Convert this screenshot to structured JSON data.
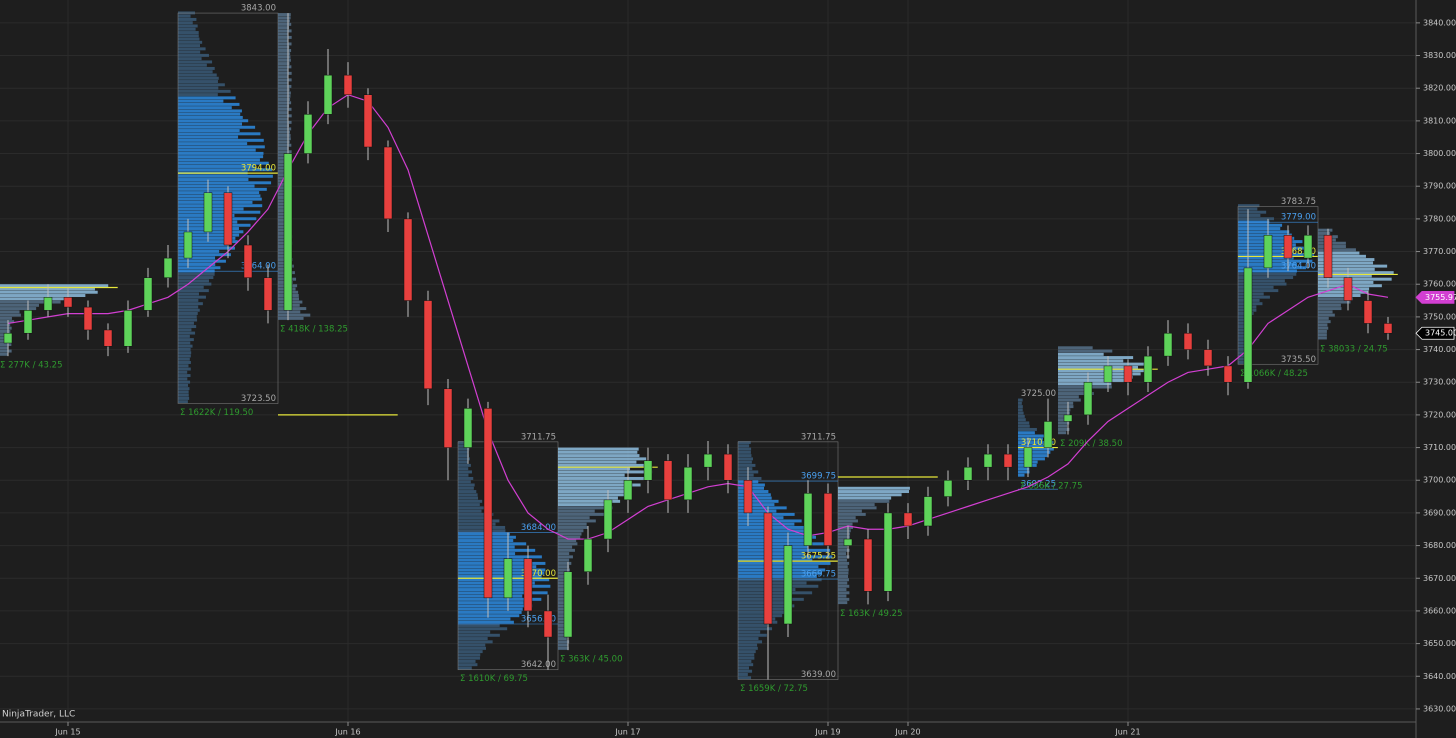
{
  "chart_data": {
    "type": "candlestick",
    "watermark": "NinjaTrader, LLC",
    "categories": [
      null,
      null,
      null,
      "Jun 15",
      null,
      null,
      null,
      null,
      null,
      null,
      null,
      null,
      null,
      null,
      null,
      null,
      null,
      "Jun 16",
      null,
      null,
      null,
      null,
      null,
      null,
      null,
      null,
      null,
      null,
      null,
      null,
      null,
      "Jun 17",
      null,
      null,
      null,
      null,
      null,
      null,
      null,
      null,
      null,
      "Jun 19",
      null,
      null,
      null,
      "Jun 20",
      null,
      null,
      null,
      null,
      null,
      null,
      null,
      null,
      null,
      null,
      "Jun 21",
      null,
      null,
      null,
      null,
      null,
      null,
      null,
      null,
      null,
      null,
      null,
      null,
      null
    ],
    "open": [
      3742,
      3745,
      3752,
      3756,
      3753,
      3746,
      3741,
      3752,
      3762,
      3768,
      3776,
      3788,
      3772,
      3762,
      3752,
      3800,
      3812,
      3824,
      3818,
      3802,
      3780,
      3755,
      3728,
      3710,
      3722,
      3664,
      3676,
      3660,
      3652,
      3672,
      3682,
      3694,
      3700,
      3706,
      3694,
      3704,
      3708,
      3700,
      3690,
      3656,
      3680,
      3696,
      3680,
      3682,
      3666,
      3690,
      3686,
      3695,
      3700,
      3704,
      3708,
      3704,
      3710,
      3718,
      3720,
      3730,
      3735,
      3730,
      3738,
      3745,
      3740,
      3735,
      3730,
      3765,
      3775,
      3768,
      3775,
      3762,
      3755,
      3748
    ],
    "high": [
      3749,
      3755,
      3760,
      3759,
      3755,
      3748,
      3755,
      3765,
      3772,
      3780,
      3792,
      3790,
      3775,
      3766,
      3843,
      3816,
      3832,
      3828,
      3820,
      3804,
      3782,
      3758,
      3731,
      3725,
      3724,
      3684,
      3680,
      3665,
      3675,
      3686,
      3697,
      3704,
      3710,
      3708,
      3708,
      3712,
      3711,
      3704,
      3692,
      3684,
      3700,
      3699,
      3686,
      3685,
      3693,
      3693,
      3698,
      3703,
      3707,
      3711,
      3711,
      3713,
      3725,
      3724,
      3733,
      3738,
      3737,
      3741,
      3749,
      3748,
      3743,
      3738,
      3783,
      3780,
      3778,
      3778,
      3777,
      3765,
      3758,
      3750
    ],
    "low": [
      3738,
      3743,
      3750,
      3750,
      3743,
      3738,
      3739,
      3750,
      3759,
      3765,
      3773,
      3768,
      3758,
      3748,
      3749,
      3797,
      3809,
      3814,
      3798,
      3776,
      3750,
      3723,
      3700,
      3705,
      3658,
      3660,
      3655,
      3642,
      3648,
      3668,
      3678,
      3690,
      3696,
      3690,
      3690,
      3700,
      3696,
      3686,
      3639,
      3652,
      3676,
      3676,
      3676,
      3662,
      3663,
      3682,
      3683,
      3692,
      3697,
      3700,
      3700,
      3701,
      3707,
      3714,
      3717,
      3727,
      3726,
      3727,
      3735,
      3737,
      3732,
      3726,
      3728,
      3762,
      3764,
      3765,
      3759,
      3752,
      3745,
      3743
    ],
    "close": [
      3745,
      3752,
      3756,
      3753,
      3746,
      3741,
      3752,
      3762,
      3768,
      3776,
      3788,
      3772,
      3762,
      3752,
      3800,
      3812,
      3824,
      3818,
      3802,
      3780,
      3755,
      3728,
      3710,
      3722,
      3664,
      3676,
      3660,
      3652,
      3672,
      3682,
      3694,
      3700,
      3706,
      3694,
      3704,
      3708,
      3700,
      3690,
      3656,
      3680,
      3696,
      3680,
      3682,
      3666,
      3690,
      3686,
      3695,
      3700,
      3704,
      3708,
      3704,
      3710,
      3718,
      3720,
      3730,
      3735,
      3730,
      3738,
      3745,
      3740,
      3735,
      3730,
      3765,
      3775,
      3768,
      3775,
      3762,
      3755,
      3748,
      3745
    ],
    "up_color": "#5ed35a",
    "down_color": "#e8403e",
    "moving_average": {
      "color": "#d23fd2",
      "values": [
        3748,
        3749,
        3750,
        3751,
        3751,
        3751,
        3752,
        3754,
        3756,
        3760,
        3765,
        3770,
        3776,
        3783,
        3795,
        3806,
        3814,
        3818,
        3816,
        3808,
        3795,
        3775,
        3755,
        3735,
        3715,
        3700,
        3690,
        3685,
        3682,
        3682,
        3684,
        3688,
        3692,
        3694,
        3696,
        3698,
        3699,
        3698,
        3690,
        3685,
        3683,
        3684,
        3686,
        3685,
        3685,
        3686,
        3688,
        3690,
        3692,
        3694,
        3696,
        3698,
        3701,
        3705,
        3712,
        3718,
        3722,
        3726,
        3730,
        3733,
        3734,
        3735,
        3740,
        3748,
        3752,
        3756,
        3758,
        3760,
        3757,
        3756
      ]
    },
    "last_price": {
      "value": 3745,
      "label": "3745.00"
    },
    "ma_last": {
      "value": 3755.97,
      "label": "3755.97"
    },
    "profiles": [
      {
        "summary": "Σ 277K / 43.25",
        "poc": 3759
      },
      {
        "high": {
          "value": 3843,
          "label": "3843.00"
        },
        "low": {
          "value": 3723.5,
          "label": "3723.50"
        },
        "poc": {
          "value": 3794,
          "label": "3794.00"
        },
        "val": {
          "value": 3764,
          "label": "3764.00"
        },
        "summary": "Σ 1622K / 119.50"
      },
      {
        "summary": "Σ 418K / 138.25",
        "poc": 3720
      },
      {
        "high": {
          "value": 3711.75,
          "label": "3711.75"
        },
        "low": {
          "value": 3642,
          "label": "3642.00"
        },
        "vah": {
          "value": 3684,
          "label": "3684.00"
        },
        "poc": {
          "value": 3670,
          "label": "3670.00"
        },
        "val": {
          "value": 3656,
          "label": "3656.00"
        },
        "summary": "Σ 1610K / 69.75"
      },
      {
        "summary": "Σ 363K / 45.00",
        "poc": 3704
      },
      {
        "high": {
          "value": 3711.75,
          "label": "3711.75"
        },
        "low": {
          "value": 3639,
          "label": "3639.00"
        },
        "vah": {
          "value": 3699.75,
          "label": "3699.75"
        },
        "poc": {
          "value": 3675.25,
          "label": "3675.25"
        },
        "val": {
          "value": 3669.75,
          "label": "3669.75"
        },
        "summary": "Σ 1659K / 72.75"
      },
      {
        "summary": "Σ 163K / 49.25",
        "poc": 3701
      },
      {
        "high": {
          "value": 3725,
          "label": "3725.00"
        },
        "poc": {
          "value": 3710,
          "label": "3710.00"
        },
        "val": {
          "value": 3697.25,
          "label": "3697.25"
        },
        "summary": "Σ 636K / 27.75"
      },
      {
        "summary": "Σ 209K / 38.50",
        "poc": 3734
      },
      {
        "high": {
          "value": 3783.75,
          "label": "3783.75"
        },
        "low": {
          "value": 3735.5,
          "label": "3735.50"
        },
        "vah": {
          "value": 3779,
          "label": "3779.00"
        },
        "poc": {
          "value": 3768.5,
          "label": "3768.50"
        },
        "val": {
          "value": 3764,
          "label": "3764.00"
        },
        "summary": "Σ 1066K / 48.25"
      },
      {
        "summary": "Σ 38033 / 24.75",
        "poc": 3763
      }
    ],
    "ylim": [
      3626,
      3847
    ],
    "yticks": [
      {
        "value": 3630,
        "label": "3630.00"
      },
      {
        "value": 3640,
        "label": "3640.00"
      },
      {
        "value": 3650,
        "label": "3650.00"
      },
      {
        "value": 3660,
        "label": "3660.00"
      },
      {
        "value": 3670,
        "label": "3670.00"
      },
      {
        "value": 3680,
        "label": "3680.00"
      },
      {
        "value": 3690,
        "label": "3690.00"
      },
      {
        "value": 3700,
        "label": "3700.00"
      },
      {
        "value": 3710,
        "label": "3710.00"
      },
      {
        "value": 3720,
        "label": "3720.00"
      },
      {
        "value": 3730,
        "label": "3730.00"
      },
      {
        "value": 3740,
        "label": "3740.00"
      },
      {
        "value": 3750,
        "label": "3750.00"
      },
      {
        "value": 3760,
        "label": "3760.00"
      },
      {
        "value": 3770,
        "label": "3770.00"
      },
      {
        "value": 3780,
        "label": "3780.00"
      },
      {
        "value": 3790,
        "label": "3790.00"
      },
      {
        "value": 3800,
        "label": "3800.00"
      },
      {
        "value": 3810,
        "label": "3810.00"
      },
      {
        "value": 3820,
        "label": "3820.00"
      },
      {
        "value": 3830,
        "label": "3830.00"
      },
      {
        "value": 3840,
        "label": "3840.00"
      }
    ],
    "grid": true
  }
}
